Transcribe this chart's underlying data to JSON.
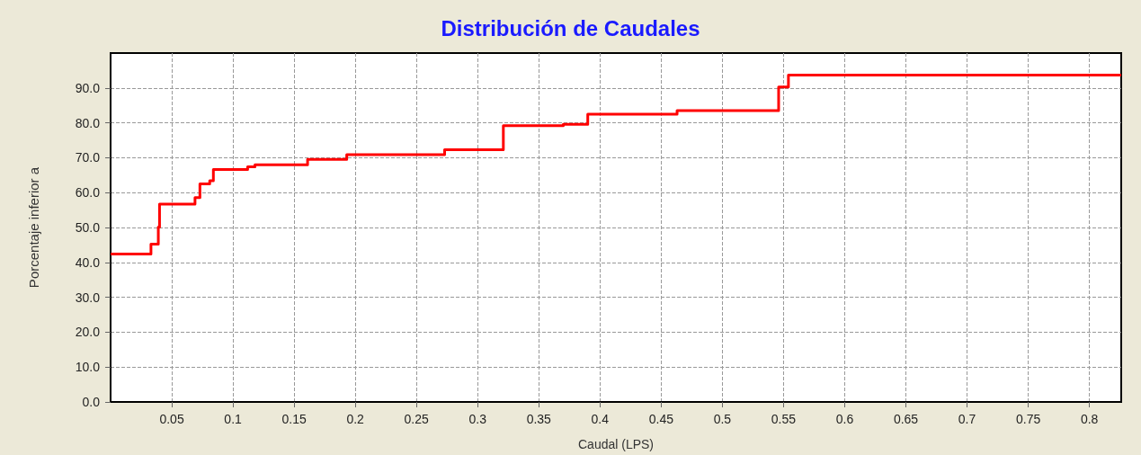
{
  "chart_data": {
    "type": "step",
    "title": "Distribución de Caudales",
    "xlabel": "Caudal (LPS)",
    "ylabel": "Porcentaje inferior a",
    "x": [
      0,
      0.033,
      0.039,
      0.04,
      0.069,
      0.073,
      0.081,
      0.084,
      0.112,
      0.118,
      0.161,
      0.193,
      0.273,
      0.321,
      0.37,
      0.39,
      0.463,
      0.546,
      0.554,
      0.826
    ],
    "series": [
      {
        "color": "#ff0000",
        "values": [
          42.4,
          45.2,
          50.1,
          56.7,
          58.6,
          62.5,
          63.4,
          66.6,
          67.4,
          68.0,
          69.5,
          70.9,
          72.3,
          79.2,
          79.6,
          82.5,
          83.5,
          90.3,
          93.7,
          93.7
        ]
      }
    ],
    "xlim": [
      0,
      0.826
    ],
    "ylim": [
      0,
      100
    ],
    "xticks": [
      0.05,
      0.1,
      0.15,
      0.2,
      0.25,
      0.3,
      0.35,
      0.4,
      0.45,
      0.5,
      0.55,
      0.6,
      0.65,
      0.7,
      0.75,
      0.8
    ],
    "yticks": [
      {
        "value": 0,
        "label": "0.0"
      },
      {
        "value": 10,
        "label": "10.0"
      },
      {
        "value": 20,
        "label": "20.0"
      },
      {
        "value": 30,
        "label": "30.0"
      },
      {
        "value": 40,
        "label": "40.0"
      },
      {
        "value": 50,
        "label": "50.0"
      },
      {
        "value": 60,
        "label": "60.0"
      },
      {
        "value": 70,
        "label": "70.0"
      },
      {
        "value": 80,
        "label": "80.0"
      },
      {
        "value": 90,
        "label": "90.0"
      }
    ],
    "grid": true,
    "marker": "none",
    "line_style": "solid"
  }
}
